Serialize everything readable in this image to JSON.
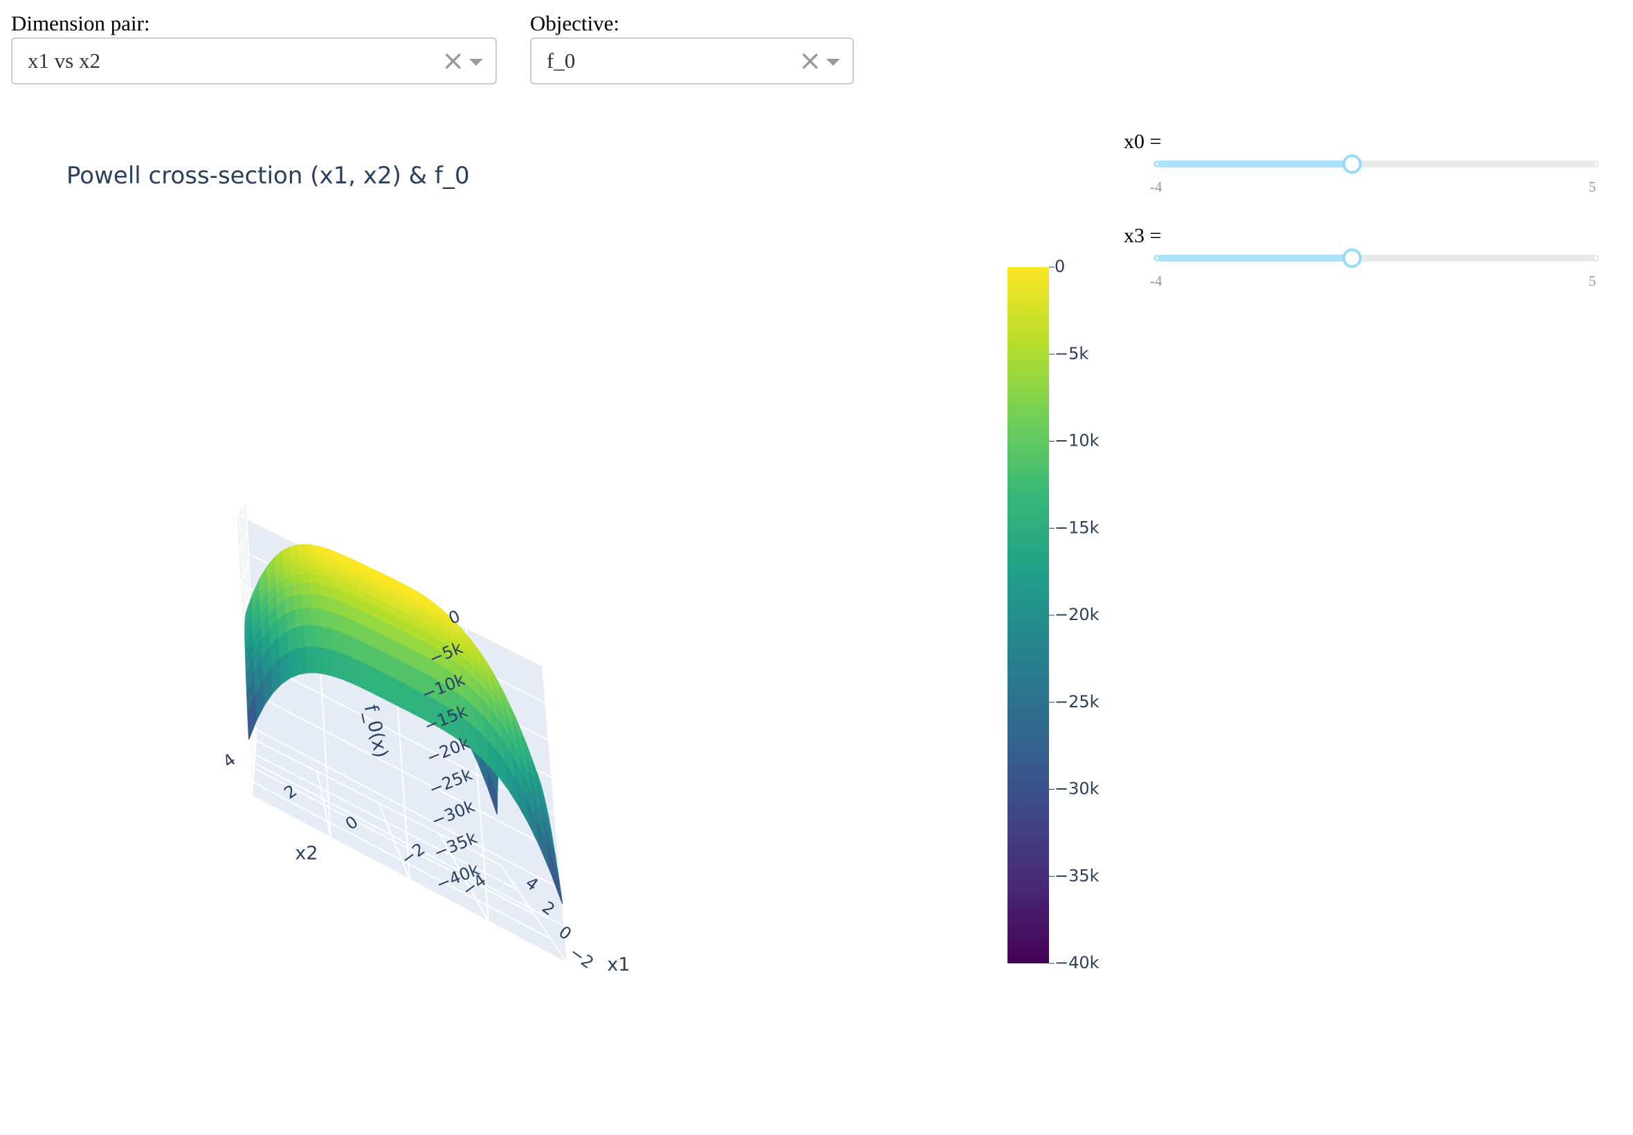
{
  "controls": {
    "dimension_pair": {
      "label": "Dimension pair:",
      "value": "x1 vs x2",
      "clear_glyph": "×",
      "caret_icon": "caret-down-icon"
    },
    "objective": {
      "label": "Objective:",
      "value": "f_0",
      "clear_glyph": "×",
      "caret_icon": "caret-down-icon"
    }
  },
  "sliders": [
    {
      "label": "x0 =",
      "min": -4,
      "max": 5,
      "min_label": "-4",
      "max_label": "5",
      "value": 0
    },
    {
      "label": "x3 =",
      "min": -4,
      "max": 5,
      "min_label": "-4",
      "max_label": "5",
      "value": 0
    }
  ],
  "chart_data": {
    "type": "surface",
    "title": "Powell cross-section (x1, x2) & f_0",
    "xlabel": "x1",
    "ylabel": "x2",
    "zlabel": "f_0(x)",
    "x_range": [
      -4,
      4
    ],
    "y_range": [
      -4,
      4
    ],
    "z_range": [
      -40000,
      0
    ],
    "x_ticks": [
      "−4",
      "−2",
      "0",
      "2",
      "4"
    ],
    "y_ticks": [
      "−4",
      "−2",
      "0",
      "2",
      "4"
    ],
    "z_ticks": [
      "0",
      "−5k",
      "−10k",
      "−15k",
      "−20k",
      "−25k",
      "−30k",
      "−35k",
      "−40k"
    ],
    "surface_z_min": -32000,
    "surface_z_max": 0,
    "colorscale": "Viridis",
    "colorbar": {
      "range": [
        -40000,
        0
      ],
      "ticks": [
        "0",
        "−5k",
        "−10k",
        "−15k",
        "−20k",
        "−25k",
        "−30k",
        "−35k",
        "−40k"
      ]
    }
  },
  "colors": {
    "viridis": [
      "#440154",
      "#482878",
      "#3e4989",
      "#31688e",
      "#26828e",
      "#1f9e89",
      "#35b779",
      "#6ece58",
      "#b5de2b",
      "#fde725"
    ],
    "grid_wall": "#e5ecf6",
    "grid_line": "#ffffff",
    "axis_text": "#2a3f5f",
    "slider_track": "#abe2fb"
  }
}
